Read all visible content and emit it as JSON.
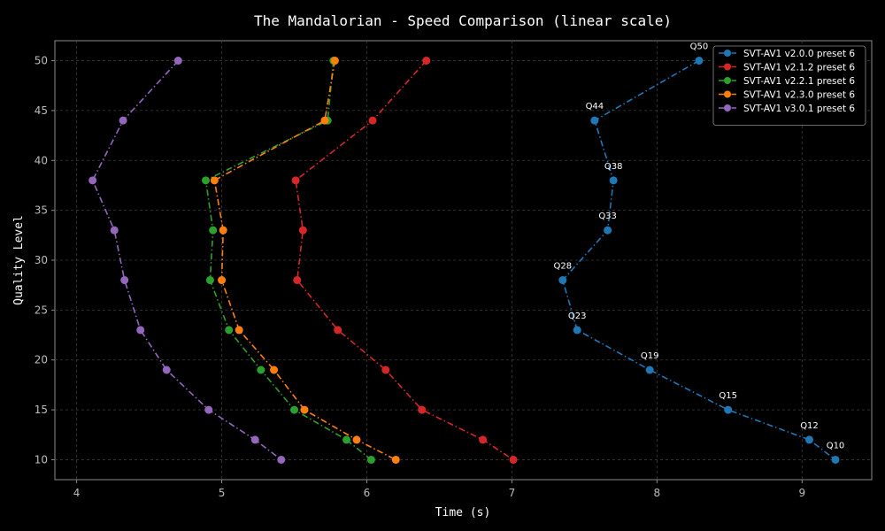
{
  "chart_data": {
    "type": "line",
    "title": "The Mandalorian - Speed Comparison (linear scale)",
    "xlabel": "Time (s)",
    "ylabel": "Quality Level",
    "xlim": [
      3.85,
      9.48
    ],
    "ylim": [
      8,
      52
    ],
    "xticks": [
      4,
      5,
      6,
      7,
      8,
      9
    ],
    "yticks": [
      10,
      15,
      20,
      25,
      30,
      35,
      40,
      45,
      50
    ],
    "grid": true,
    "legend_position": "top-right",
    "series": [
      {
        "name": "SVT-AV1 v2.0.0 preset 6",
        "color": "#1f77b4",
        "points": [
          {
            "x": 8.29,
            "y": 50
          },
          {
            "x": 7.57,
            "y": 44
          },
          {
            "x": 7.7,
            "y": 38
          },
          {
            "x": 7.66,
            "y": 33
          },
          {
            "x": 7.35,
            "y": 28
          },
          {
            "x": 7.45,
            "y": 23
          },
          {
            "x": 7.95,
            "y": 19
          },
          {
            "x": 8.49,
            "y": 15
          },
          {
            "x": 9.05,
            "y": 12
          },
          {
            "x": 9.23,
            "y": 10
          }
        ]
      },
      {
        "name": "SVT-AV1 v2.1.2 preset 6",
        "color": "#d62728",
        "points": [
          {
            "x": 6.41,
            "y": 50
          },
          {
            "x": 6.04,
            "y": 44
          },
          {
            "x": 5.51,
            "y": 38
          },
          {
            "x": 5.56,
            "y": 33
          },
          {
            "x": 5.52,
            "y": 28
          },
          {
            "x": 5.8,
            "y": 23
          },
          {
            "x": 6.13,
            "y": 19
          },
          {
            "x": 6.38,
            "y": 15
          },
          {
            "x": 6.8,
            "y": 12
          },
          {
            "x": 7.01,
            "y": 10
          }
        ]
      },
      {
        "name": "SVT-AV1 v2.2.1 preset 6",
        "color": "#2ca02c",
        "points": [
          {
            "x": 5.77,
            "y": 50
          },
          {
            "x": 5.73,
            "y": 44
          },
          {
            "x": 4.89,
            "y": 38
          },
          {
            "x": 4.94,
            "y": 33
          },
          {
            "x": 4.92,
            "y": 28
          },
          {
            "x": 5.05,
            "y": 23
          },
          {
            "x": 5.27,
            "y": 19
          },
          {
            "x": 5.5,
            "y": 15
          },
          {
            "x": 5.86,
            "y": 12
          },
          {
            "x": 6.03,
            "y": 10
          }
        ]
      },
      {
        "name": "SVT-AV1 v2.3.0 preset 6",
        "color": "#ff7f0e",
        "points": [
          {
            "x": 5.78,
            "y": 50
          },
          {
            "x": 5.71,
            "y": 44
          },
          {
            "x": 4.95,
            "y": 38
          },
          {
            "x": 5.01,
            "y": 33
          },
          {
            "x": 5.0,
            "y": 28
          },
          {
            "x": 5.12,
            "y": 23
          },
          {
            "x": 5.36,
            "y": 19
          },
          {
            "x": 5.57,
            "y": 15
          },
          {
            "x": 5.93,
            "y": 12
          },
          {
            "x": 6.2,
            "y": 10
          }
        ]
      },
      {
        "name": "SVT-AV1 v3.0.1 preset 6",
        "color": "#9467bd",
        "points": [
          {
            "x": 4.7,
            "y": 50
          },
          {
            "x": 4.32,
            "y": 44
          },
          {
            "x": 4.11,
            "y": 38
          },
          {
            "x": 4.26,
            "y": 33
          },
          {
            "x": 4.33,
            "y": 28
          },
          {
            "x": 4.44,
            "y": 23
          },
          {
            "x": 4.62,
            "y": 19
          },
          {
            "x": 4.91,
            "y": 15
          },
          {
            "x": 5.23,
            "y": 12
          },
          {
            "x": 5.41,
            "y": 10
          }
        ]
      }
    ],
    "annotations": [
      {
        "text": "Q50",
        "x": 8.29,
        "y": 50
      },
      {
        "text": "Q44",
        "x": 7.57,
        "y": 44
      },
      {
        "text": "Q38",
        "x": 7.7,
        "y": 38
      },
      {
        "text": "Q33",
        "x": 7.66,
        "y": 33
      },
      {
        "text": "Q28",
        "x": 7.35,
        "y": 28
      },
      {
        "text": "Q23",
        "x": 7.45,
        "y": 23
      },
      {
        "text": "Q19",
        "x": 7.95,
        "y": 19
      },
      {
        "text": "Q15",
        "x": 8.49,
        "y": 15
      },
      {
        "text": "Q12",
        "x": 9.05,
        "y": 12
      },
      {
        "text": "Q10",
        "x": 9.23,
        "y": 10
      }
    ]
  }
}
